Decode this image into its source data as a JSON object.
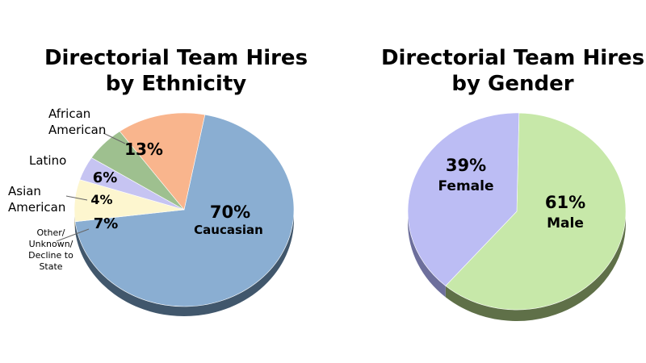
{
  "chart_data": [
    {
      "type": "pie",
      "title": [
        "Directorial Team Hires",
        "by Ethnicity"
      ],
      "slices": [
        {
          "label": "Caucasian",
          "value": 70,
          "text": "70%",
          "color": "#8aaed2",
          "side": "#41576c"
        },
        {
          "label": "Other/ Unknown/ Decline to State",
          "value": 7,
          "text": "7%",
          "color": "#fdf6cf",
          "side": "#b9b194"
        },
        {
          "label": "Asian American",
          "value": 4,
          "text": "4%",
          "color": "#c6c4f2",
          "side": "#7b79a8"
        },
        {
          "label": "Latino",
          "value": 6,
          "text": "6%",
          "color": "#9ec08f",
          "side": "#5f7a52"
        },
        {
          "label": "African American",
          "value": 13,
          "text": "13%",
          "color": "#f9b58d",
          "side": "#a9734f"
        }
      ],
      "callouts": [
        {
          "lines": [
            "African",
            "American"
          ]
        },
        {
          "lines": [
            "Latino"
          ]
        },
        {
          "lines": [
            "Asian",
            "American"
          ]
        },
        {
          "lines": [
            "Other/",
            "Unknown/",
            "Decline to",
            "State"
          ]
        }
      ],
      "inner_label": "Caucasian"
    },
    {
      "type": "pie",
      "title": [
        "Directorial Team Hires",
        "by Gender"
      ],
      "slices": [
        {
          "label": "Male",
          "value": 61,
          "text": "61%",
          "color": "#c7e8a9",
          "side": "#5f7048"
        },
        {
          "label": "Female",
          "value": 39,
          "text": "39%",
          "color": "#bcbdf4",
          "side": "#6d6f9c"
        }
      ]
    }
  ]
}
